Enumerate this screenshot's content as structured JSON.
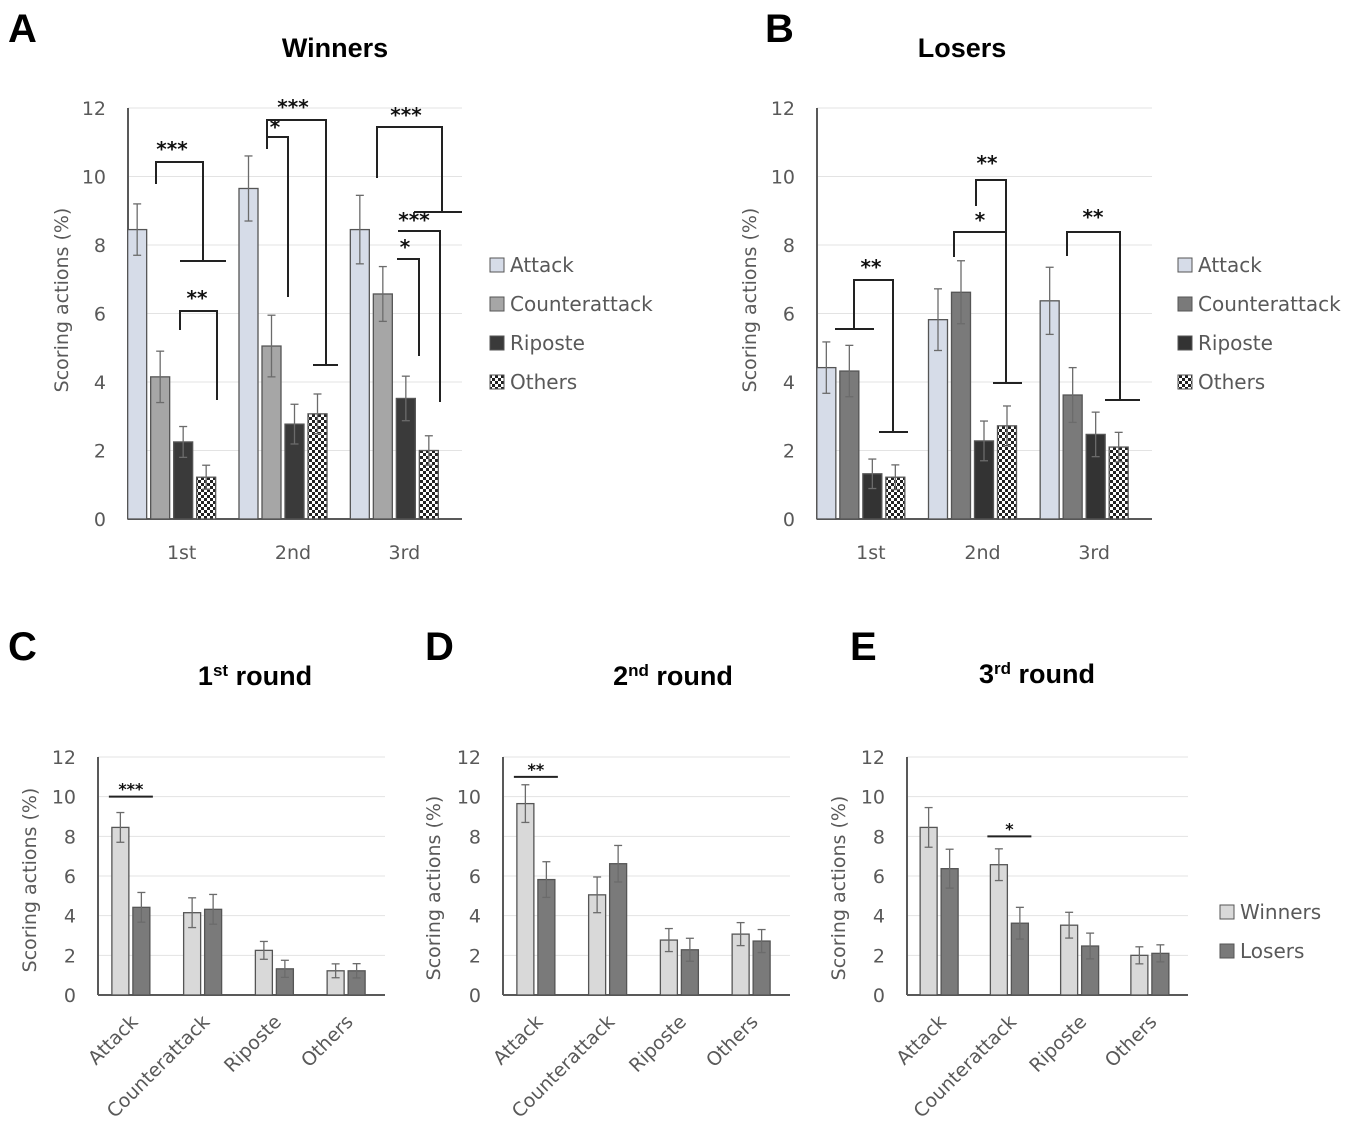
{
  "chart_data": [
    {
      "id": "A",
      "panel_label": "A",
      "type": "bar",
      "title": "Winners",
      "xlabel": "",
      "ylabel": "Scoring actions (%)",
      "ylim": [
        0,
        12
      ],
      "yticks": [
        0,
        2,
        4,
        6,
        8,
        10,
        12
      ],
      "grid": true,
      "legend_position": "right",
      "categories": [
        "1st",
        "2nd",
        "3rd"
      ],
      "series": [
        {
          "name": "Attack",
          "color": "#d6dce8",
          "pattern": "solid",
          "values": [
            8.45,
            9.65,
            8.45
          ],
          "errors": [
            0.75,
            0.95,
            1.0
          ]
        },
        {
          "name": "Counterattack",
          "color": "#a6a6a6",
          "pattern": "solid",
          "values": [
            4.15,
            5.05,
            6.57
          ],
          "errors": [
            0.75,
            0.9,
            0.8
          ]
        },
        {
          "name": "Riposte",
          "color": "#3a3a3a",
          "pattern": "solid",
          "values": [
            2.25,
            2.77,
            3.52
          ],
          "errors": [
            0.45,
            0.58,
            0.65
          ]
        },
        {
          "name": "Others",
          "color": "#ffffff",
          "pattern": "checker",
          "values": [
            1.22,
            3.07,
            2.0
          ],
          "errors": [
            0.35,
            0.58,
            0.43
          ]
        }
      ],
      "significance": [
        {
          "label": "***",
          "group": 0,
          "from": "Attack",
          "to": "Riposte/Others"
        },
        {
          "label": "**",
          "group": 0,
          "from": "Counterattack",
          "to": "Others"
        },
        {
          "label": "*",
          "group": 1,
          "from": "Attack",
          "to": "Counterattack"
        },
        {
          "label": "***",
          "group": 1,
          "from": "Attack",
          "to": "Riposte/Others"
        },
        {
          "label": "***",
          "group": 2,
          "from": "Attack",
          "to": "Others (beyond)"
        },
        {
          "label": "***",
          "group": 2,
          "from": "Counterattack",
          "to": "Others"
        },
        {
          "label": "*",
          "group": 2,
          "from": "Counterattack",
          "to": "Riposte"
        }
      ]
    },
    {
      "id": "B",
      "panel_label": "B",
      "type": "bar",
      "title": "Losers",
      "xlabel": "",
      "ylabel": "Scoring actions (%)",
      "ylim": [
        0,
        12
      ],
      "yticks": [
        0,
        2,
        4,
        6,
        8,
        10,
        12
      ],
      "grid": true,
      "legend_position": "right",
      "categories": [
        "1st",
        "2nd",
        "3rd"
      ],
      "series": [
        {
          "name": "Attack",
          "color": "#d6dce8",
          "pattern": "solid",
          "values": [
            4.42,
            5.82,
            6.37
          ],
          "errors": [
            0.75,
            0.9,
            0.98
          ]
        },
        {
          "name": "Counterattack",
          "color": "#7a7a7a",
          "pattern": "solid",
          "values": [
            4.32,
            6.62,
            3.62
          ],
          "errors": [
            0.75,
            0.92,
            0.8
          ]
        },
        {
          "name": "Riposte",
          "color": "#333333",
          "pattern": "solid",
          "values": [
            1.32,
            2.28,
            2.47
          ],
          "errors": [
            0.43,
            0.58,
            0.65
          ]
        },
        {
          "name": "Others",
          "color": "#ffffff",
          "pattern": "checker",
          "values": [
            1.22,
            2.72,
            2.1
          ],
          "errors": [
            0.36,
            0.58,
            0.43
          ]
        }
      ],
      "significance": [
        {
          "label": "**",
          "group": 0,
          "from": "Attack/Counterattack",
          "to": "Riposte/Others"
        },
        {
          "label": "*",
          "group": 1,
          "from": "Attack",
          "to": "Riposte/Others"
        },
        {
          "label": "**",
          "group": 1,
          "from": "Counterattack",
          "to": "Riposte/Others"
        },
        {
          "label": "**",
          "group": 2,
          "from": "Attack",
          "to": "Others (beyond)"
        }
      ]
    },
    {
      "id": "C",
      "panel_label": "C",
      "type": "bar",
      "title": "1st round",
      "title_number": "1",
      "title_sup": "st",
      "title_rest": " round",
      "xlabel": "",
      "ylabel": "Scoring actions (%)",
      "ylim": [
        0,
        12
      ],
      "yticks": [
        0,
        2,
        4,
        6,
        8,
        10,
        12
      ],
      "grid": true,
      "categories": [
        "Attack",
        "Counterattack",
        "Riposte",
        "Others"
      ],
      "series": [
        {
          "name": "Winners",
          "color": "#d9d9d9",
          "values": [
            8.45,
            4.15,
            2.25,
            1.22
          ],
          "errors": [
            0.75,
            0.75,
            0.45,
            0.35
          ]
        },
        {
          "name": "Losers",
          "color": "#7a7a7a",
          "values": [
            4.42,
            4.32,
            1.32,
            1.22
          ],
          "errors": [
            0.75,
            0.75,
            0.43,
            0.36
          ]
        }
      ],
      "significance": [
        {
          "label": "***",
          "category": "Attack",
          "y": 10.0
        }
      ]
    },
    {
      "id": "D",
      "panel_label": "D",
      "type": "bar",
      "title": "2nd round",
      "title_number": "2",
      "title_sup": "nd",
      "title_rest": " round",
      "xlabel": "",
      "ylabel": "Scoring actions (%)",
      "ylim": [
        0,
        12
      ],
      "yticks": [
        0,
        2,
        4,
        6,
        8,
        10,
        12
      ],
      "grid": true,
      "categories": [
        "Attack",
        "Counterattack",
        "Riposte",
        "Others"
      ],
      "series": [
        {
          "name": "Winners",
          "color": "#d9d9d9",
          "values": [
            9.65,
            5.05,
            2.77,
            3.07
          ],
          "errors": [
            0.95,
            0.9,
            0.58,
            0.58
          ]
        },
        {
          "name": "Losers",
          "color": "#7a7a7a",
          "values": [
            5.82,
            6.62,
            2.28,
            2.72
          ],
          "errors": [
            0.9,
            0.92,
            0.58,
            0.58
          ]
        }
      ],
      "significance": [
        {
          "label": "**",
          "category": "Attack",
          "y": 11.0
        }
      ]
    },
    {
      "id": "E",
      "panel_label": "E",
      "type": "bar",
      "title": "3rd round",
      "title_number": "3",
      "title_sup": "rd",
      "title_rest": " round",
      "xlabel": "",
      "ylabel": "Scoring actions (%)",
      "ylim": [
        0,
        12
      ],
      "yticks": [
        0,
        2,
        4,
        6,
        8,
        10,
        12
      ],
      "grid": true,
      "legend_position": "right",
      "categories": [
        "Attack",
        "Counterattack",
        "Riposte",
        "Others"
      ],
      "series": [
        {
          "name": "Winners",
          "color": "#d9d9d9",
          "values": [
            8.45,
            6.57,
            3.52,
            2.0
          ],
          "errors": [
            1.0,
            0.8,
            0.65,
            0.43
          ]
        },
        {
          "name": "Losers",
          "color": "#7a7a7a",
          "values": [
            6.37,
            3.62,
            2.47,
            2.1
          ],
          "errors": [
            0.98,
            0.8,
            0.65,
            0.43
          ]
        }
      ],
      "significance": [
        {
          "label": "*",
          "category": "Counterattack",
          "y": 8.0
        }
      ]
    }
  ]
}
